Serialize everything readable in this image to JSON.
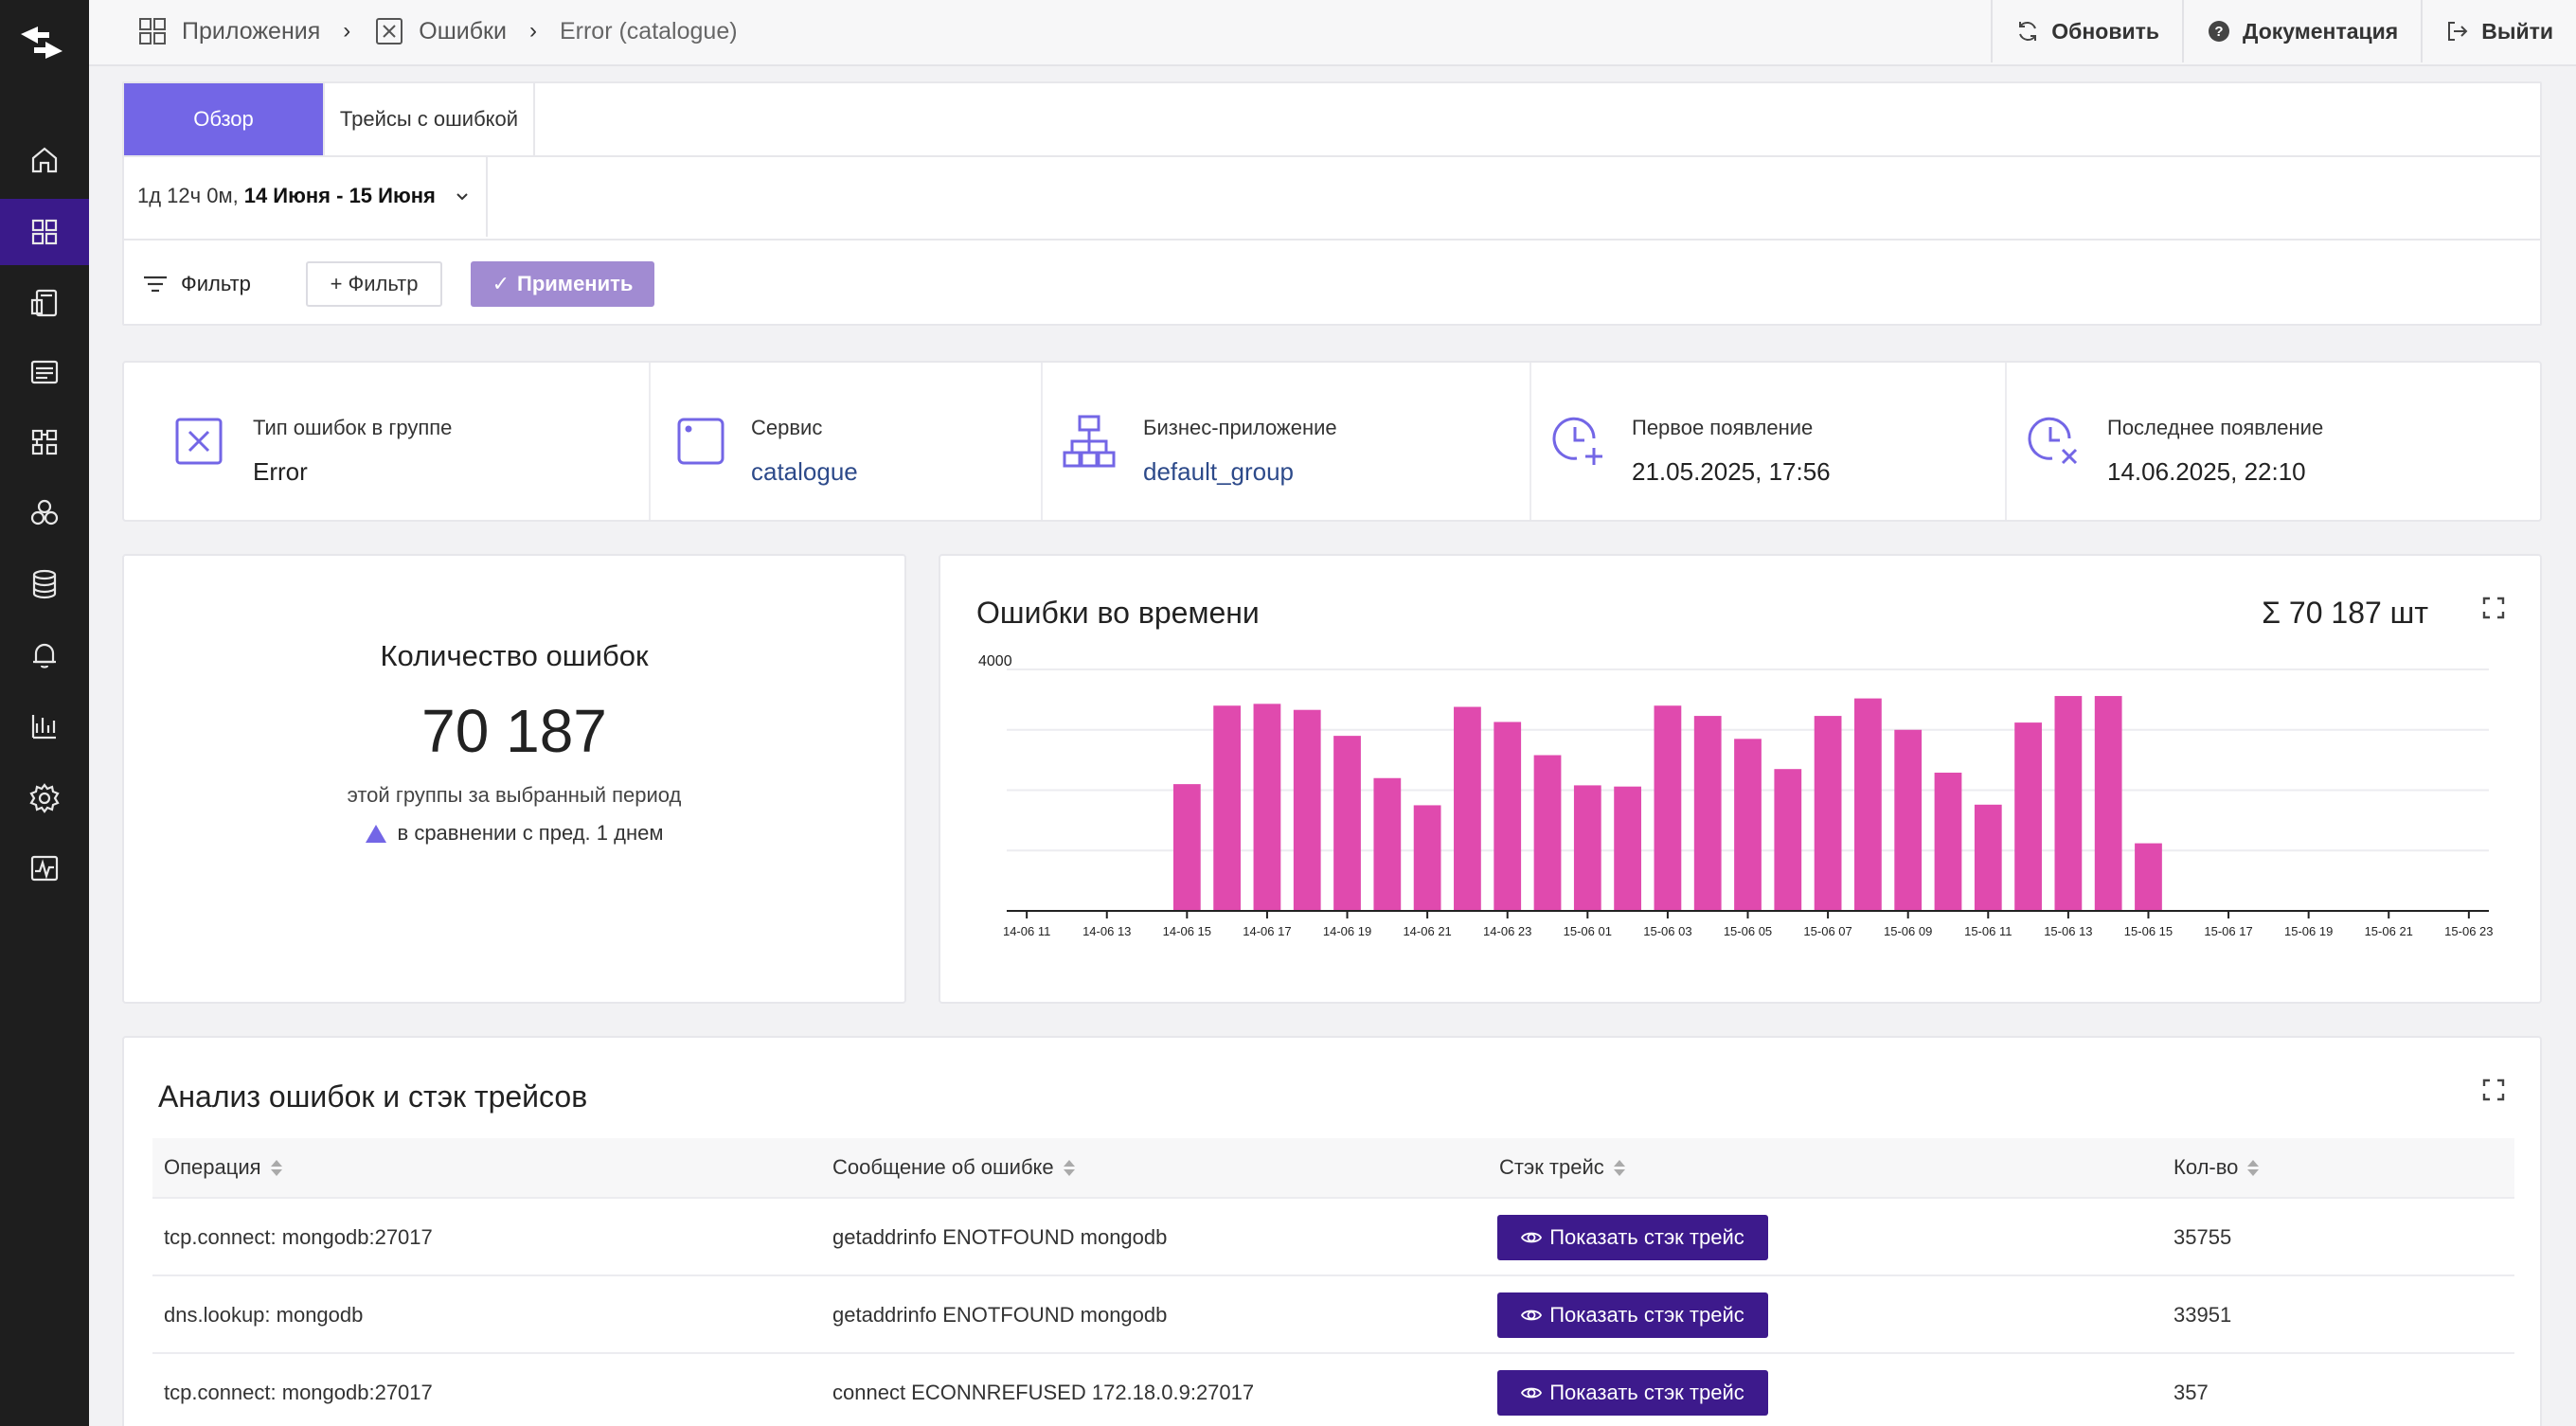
{
  "breadcrumb": {
    "apps": "Приложения",
    "errors": "Ошибки",
    "current": "Error (catalogue)"
  },
  "top_actions": {
    "refresh": "Обновить",
    "docs": "Документация",
    "logout": "Выйти"
  },
  "sidebar": {
    "items": [
      "home-icon",
      "apps-grid-icon",
      "services-icon",
      "logs-icon",
      "modules-icon",
      "hexagons-icon",
      "database-icon",
      "bell-icon",
      "bar-chart-icon",
      "gear-icon",
      "activity-icon"
    ],
    "active_index": 1,
    "accent": "#3a1a8a"
  },
  "tabs": [
    {
      "label": "Обзор",
      "active": true
    },
    {
      "label": "Трейсы с ошибкой",
      "active": false
    }
  ],
  "time_range": {
    "duration": "1д 12ч 0м,",
    "dates": "14 Июня - 15 Июня"
  },
  "filter": {
    "label": "Фильтр",
    "add": "+ Фильтр",
    "apply": "Применить",
    "apply_check": "✓"
  },
  "info": {
    "error_type_label": "Тип ошибок в группе",
    "error_type_value": "Error",
    "service_label": "Сервис",
    "service_value": "catalogue",
    "business_label": "Бизнес-приложение",
    "business_value": "default_group",
    "first_label": "Первое появление",
    "first_value": "21.05.2025, 17:56",
    "last_label": "Последнее появление",
    "last_value": "14.06.2025, 22:10"
  },
  "count": {
    "title": "Количество ошибок",
    "value": "70 187",
    "subtitle": "этой группы за выбранный период",
    "comparison": "в сравнении с пред. 1 днем"
  },
  "chart": {
    "title": "Ошибки во времени",
    "sum": "Σ 70 187 шт",
    "bar_color": "#e04aae"
  },
  "chart_data": {
    "type": "bar",
    "title": "Ошибки во времени",
    "ylim": [
      0,
      4000
    ],
    "y_ticks": [
      "4000"
    ],
    "grid": true,
    "x_tick_labels": [
      "14-06 11",
      "14-06 13",
      "14-06 15",
      "14-06 17",
      "14-06 19",
      "14-06 21",
      "14-06 23",
      "15-06 01",
      "15-06 03",
      "15-06 05",
      "15-06 07",
      "15-06 09",
      "15-06 11",
      "15-06 13",
      "15-06 15",
      "15-06 17",
      "15-06 19",
      "15-06 21",
      "15-06 23"
    ],
    "categories": [
      "14-06 11",
      "14-06 12",
      "14-06 13",
      "14-06 14",
      "14-06 15",
      "14-06 16",
      "14-06 17",
      "14-06 18",
      "14-06 19",
      "14-06 20",
      "14-06 21",
      "14-06 22",
      "14-06 23",
      "15-06 00",
      "15-06 01",
      "15-06 02",
      "15-06 03",
      "15-06 04",
      "15-06 05",
      "15-06 06",
      "15-06 07",
      "15-06 08",
      "15-06 09",
      "15-06 10",
      "15-06 11",
      "15-06 12",
      "15-06 13",
      "15-06 14",
      "15-06 15",
      "15-06 16",
      "15-06 17",
      "15-06 18",
      "15-06 19",
      "15-06 20",
      "15-06 21",
      "15-06 22",
      "15-06 23"
    ],
    "values": [
      0,
      0,
      0,
      0,
      2100,
      3400,
      3430,
      3330,
      2900,
      2200,
      1750,
      3380,
      3130,
      2580,
      2080,
      2060,
      3400,
      3230,
      2850,
      2350,
      3230,
      3520,
      3000,
      2290,
      1760,
      3120,
      3560,
      3560,
      1120,
      0,
      0,
      0,
      0,
      0,
      0,
      0,
      0
    ]
  },
  "table": {
    "title": "Анализ ошибок и стэк трейсов",
    "headers": [
      "Операция",
      "Сообщение об ошибке",
      "Стэк трейс",
      "Кол-во"
    ],
    "button_label": "Показать стэк трейс",
    "rows": [
      {
        "operation": "tcp.connect: mongodb:27017",
        "message": "getaddrinfo ENOTFOUND mongodb",
        "count": "35755"
      },
      {
        "operation": "dns.lookup: mongodb",
        "message": "getaddrinfo ENOTFOUND mongodb",
        "count": "33951"
      },
      {
        "operation": "tcp.connect: mongodb:27017",
        "message": "connect ECONNREFUSED 172.18.0.9:27017",
        "count": "357"
      }
    ]
  }
}
